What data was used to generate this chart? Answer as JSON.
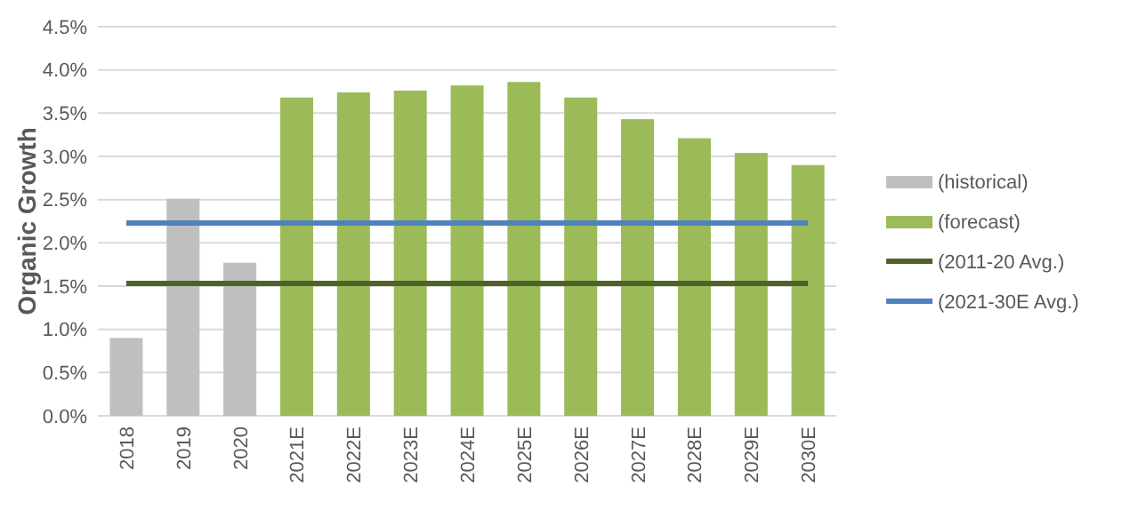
{
  "chart_data": {
    "type": "bar",
    "ylabel": "Organic Growth",
    "categories": [
      "2018",
      "2019",
      "2020",
      "2021E",
      "2022E",
      "2023E",
      "2024E",
      "2025E",
      "2026E",
      "2027E",
      "2028E",
      "2029E",
      "2030E"
    ],
    "series": [
      {
        "name": "(historical)",
        "color": "#bfbfbf",
        "values": [
          0.9,
          2.51,
          1.77,
          null,
          null,
          null,
          null,
          null,
          null,
          null,
          null,
          null,
          null
        ]
      },
      {
        "name": "(forecast)",
        "color": "#9bbb59",
        "values": [
          null,
          null,
          null,
          3.68,
          3.74,
          3.76,
          3.82,
          3.86,
          3.68,
          3.43,
          3.21,
          3.04,
          2.9
        ]
      },
      {
        "name": "(2011-20 Avg.)",
        "type": "line",
        "color": "#4f6228",
        "values": [
          1.53,
          1.53,
          1.53,
          1.53,
          1.53,
          1.53,
          1.53,
          1.53,
          1.53,
          1.53,
          1.53,
          1.53,
          1.53
        ]
      },
      {
        "name": "(2021-30E Avg.)",
        "type": "line",
        "color": "#4f81bd",
        "values": [
          2.23,
          2.23,
          2.23,
          2.23,
          2.23,
          2.23,
          2.23,
          2.23,
          2.23,
          2.23,
          2.23,
          2.23,
          2.23
        ]
      }
    ],
    "ylim": [
      0,
      4.5
    ],
    "yticks": [
      {
        "value": 0,
        "label": "0.0%"
      },
      {
        "value": 0.5,
        "label": "0.5%"
      },
      {
        "value": 1,
        "label": "1.0%"
      },
      {
        "value": 1.5,
        "label": "1.5%"
      },
      {
        "value": 2,
        "label": "2.0%"
      },
      {
        "value": 2.5,
        "label": "2.5%"
      },
      {
        "value": 3,
        "label": "3.0%"
      },
      {
        "value": 3.5,
        "label": "3.5%"
      },
      {
        "value": 4,
        "label": "4.0%"
      },
      {
        "value": 4.5,
        "label": "4.5%"
      }
    ],
    "grid": "y",
    "legend": "right"
  }
}
